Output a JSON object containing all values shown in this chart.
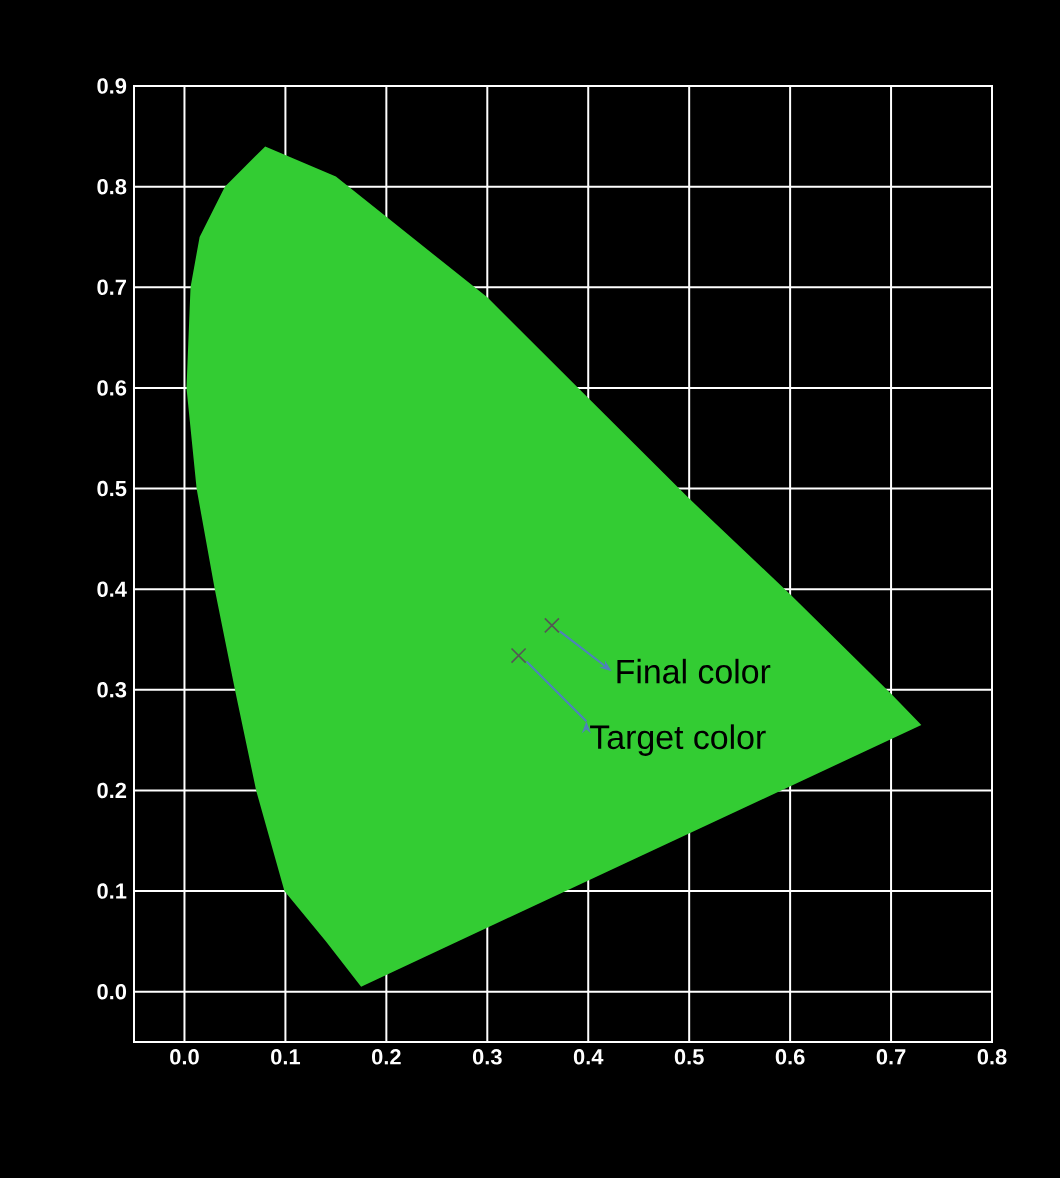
{
  "chart_data": {
    "type": "scatter",
    "xlim": [
      -0.05,
      0.8
    ],
    "ylim": [
      -0.05,
      0.9
    ],
    "xticks": [
      {
        "value": 0,
        "label": "0.0"
      },
      0.1,
      0.2,
      0.3,
      0.4,
      0.5,
      0.6,
      0.7,
      0.8
    ],
    "yticks": [
      {
        "value": 0,
        "label": "0.0"
      },
      0.1,
      0.2,
      0.3,
      0.4,
      0.5,
      0.6,
      0.7,
      0.8,
      0.9
    ],
    "grid": true,
    "series": [
      {
        "type": "area",
        "color": "#33cc33",
        "x": [
          0.175,
          0.14,
          0.099,
          0.071,
          0.05,
          0.03,
          0.012,
          0.002,
          0.006,
          0.015,
          0.04,
          0.08,
          0.15,
          0.2,
          0.3,
          0.4,
          0.5,
          0.6,
          0.7,
          0.73,
          0.175
        ],
        "values": [
          0.005,
          0.05,
          0.1,
          0.2,
          0.3,
          0.4,
          0.5,
          0.6,
          0.7,
          0.75,
          0.8,
          0.84,
          0.81,
          0.77,
          0.69,
          0.59,
          0.49,
          0.395,
          0.296,
          0.265,
          0.005
        ]
      },
      {
        "color": "#555555",
        "marker": "cross",
        "x": [
          0.364,
          0.331
        ],
        "values": [
          0.364,
          0.334
        ]
      }
    ],
    "annotations": [
      {
        "text": "Final color",
        "x": 0.364,
        "y": 0.364
      },
      {
        "text": "Target color",
        "x": 0.331,
        "y": 0.334
      }
    ]
  }
}
